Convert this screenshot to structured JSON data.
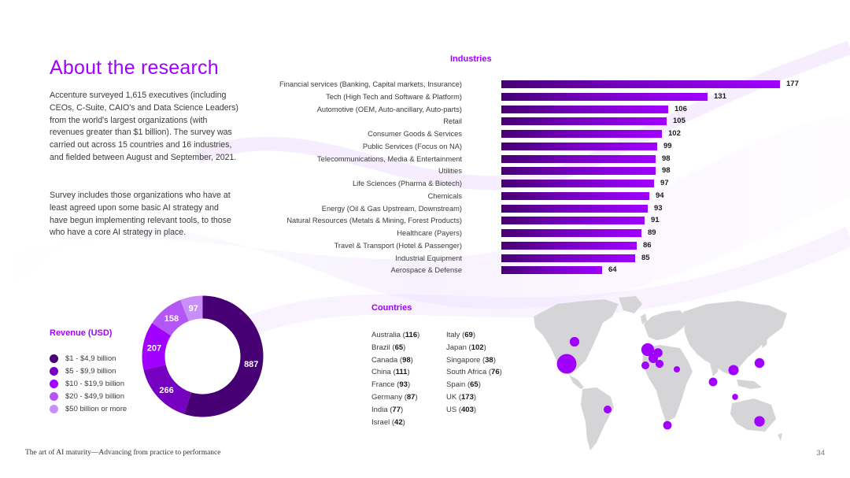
{
  "page": {
    "title": "About the research",
    "paragraph1": "Accenture surveyed 1,615 executives (including CEOs, C-Suite, CAIO's and Data Science Leaders) from the world's largest organizations (with revenues greater than $1 billion). The survey was carried out across 15 countries and 16 industries, and fielded between August and September, 2021.",
    "paragraph2": "Survey includes those organizations who have at least agreed upon some basic AI strategy and have begun implementing relevant tools, to those who have a core AI strategy  in place.",
    "footer": "The art of AI maturity—Advancing from practice to performance",
    "page_number": "34"
  },
  "colors": {
    "accent": "#a100ff",
    "dark_purple": "#460073",
    "map_land": "#d5d5d8",
    "map_dot": "#a100ff"
  },
  "chart_data": [
    {
      "type": "bar",
      "orientation": "horizontal",
      "title": "Industries",
      "categories": [
        "Financial services (Banking, Capital markets, Insurance)",
        "Tech (High Tech and Software & Platform)",
        "Automotive (OEM, Auto-ancillary, Auto-parts)",
        "Retail",
        "Consumer Goods & Services",
        "Public Services (Focus on NA)",
        "Telecommunications, Media & Entertainment",
        "Utilities",
        "Life Sciences (Pharma & Biotech)",
        "Chemicals",
        "Energy (Oil & Gas Upstream, Downstream)",
        "Natural Resources (Metals & Mining, Forest Products)",
        "Healthcare (Payers)",
        "Travel & Transport (Hotel & Passenger)",
        "Industrial Equipment",
        "Aerospace & Defense"
      ],
      "values": [
        177,
        131,
        106,
        105,
        102,
        99,
        98,
        98,
        97,
        94,
        93,
        91,
        89,
        86,
        85,
        64
      ],
      "value_labels": [
        "177",
        "131",
        "106",
        "105",
        "102",
        "99",
        "98",
        "98",
        "97",
        "94",
        "93",
        "91",
        "89",
        "86",
        "85",
        "64"
      ],
      "xlim": [
        0,
        177
      ]
    },
    {
      "type": "pie",
      "style": "donut",
      "title": "Revenue (USD)",
      "categories": [
        "$1 - $4,9 billion",
        "$5 - $9,9 billion",
        "$10 - $19,9 billion",
        "$20 - $49,9 billion",
        "$50 billion or more"
      ],
      "values": [
        887,
        266,
        207,
        158,
        97
      ],
      "value_labels": [
        "887",
        "266",
        "207",
        "158",
        "97"
      ],
      "colors": [
        "#460073",
        "#7500c0",
        "#a100ff",
        "#b455f5",
        "#c98ff8"
      ]
    }
  ],
  "countries": {
    "title": "Countries",
    "col1": [
      {
        "name": "Australia",
        "count": "116"
      },
      {
        "name": "Brazil",
        "count": "65"
      },
      {
        "name": "Canada",
        "count": "98"
      },
      {
        "name": "China",
        "count": "111"
      },
      {
        "name": "France",
        "count": "93"
      },
      {
        "name": "Germany",
        "count": "87"
      },
      {
        "name": "India",
        "count": "77"
      },
      {
        "name": "Israel",
        "count": "42"
      }
    ],
    "col2": [
      {
        "name": "Italy",
        "count": "69"
      },
      {
        "name": "Japan",
        "count": "102"
      },
      {
        "name": "Singapore",
        "count": "38"
      },
      {
        "name": "South Africa",
        "count": "76"
      },
      {
        "name": "Spain",
        "count": "65"
      },
      {
        "name": "UK",
        "count": "173"
      },
      {
        "name": "US",
        "count": "403"
      }
    ]
  },
  "map_markers": [
    {
      "country": "US",
      "value": 403
    },
    {
      "country": "Canada",
      "value": 98
    },
    {
      "country": "UK",
      "value": 173
    },
    {
      "country": "France",
      "value": 93
    },
    {
      "country": "Germany",
      "value": 87
    },
    {
      "country": "Spain",
      "value": 65
    },
    {
      "country": "Italy",
      "value": 69
    },
    {
      "country": "Israel",
      "value": 42
    },
    {
      "country": "India",
      "value": 77
    },
    {
      "country": "China",
      "value": 111
    },
    {
      "country": "Japan",
      "value": 102
    },
    {
      "country": "Singapore",
      "value": 38
    },
    {
      "country": "Brazil",
      "value": 65
    },
    {
      "country": "South Africa",
      "value": 76
    },
    {
      "country": "Australia",
      "value": 116
    }
  ]
}
